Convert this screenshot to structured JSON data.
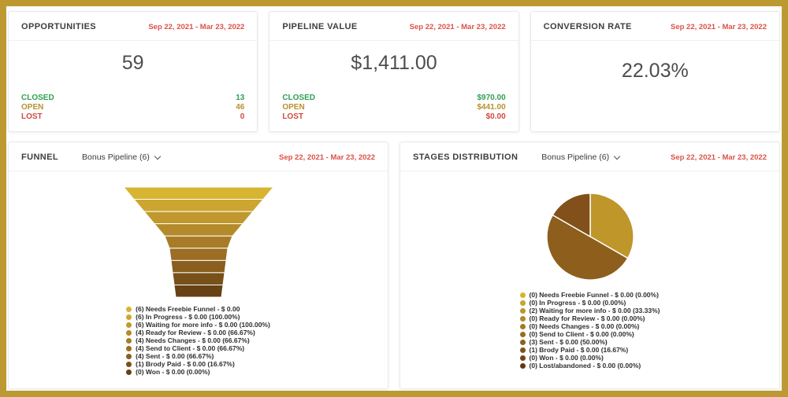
{
  "colors": {
    "frame-gold": "#BD9A31",
    "date-red": "#DC5248",
    "closed-green": "#2FA052",
    "open-gold": "#B8912C",
    "lost-red": "#D04A41",
    "title-gray": "#3E3E3E",
    "number-gray": "#4D4D4D"
  },
  "cards": {
    "opportunities": {
      "title": "OPPORTUNITIES",
      "date_range": "Sep 22, 2021 - Mar 23, 2022",
      "total": "59",
      "rows": [
        {
          "label": "CLOSED",
          "value": "13",
          "color": "#2FA052"
        },
        {
          "label": "OPEN",
          "value": "46",
          "color": "#B8912C"
        },
        {
          "label": "LOST",
          "value": "0",
          "color": "#D04A41"
        }
      ]
    },
    "pipeline_value": {
      "title": "PIPELINE VALUE",
      "date_range": "Sep 22, 2021 - Mar 23, 2022",
      "total": "$1,411.00",
      "rows": [
        {
          "label": "CLOSED",
          "value": "$970.00",
          "color": "#2FA052"
        },
        {
          "label": "OPEN",
          "value": "$441.00",
          "color": "#B8912C"
        },
        {
          "label": "LOST",
          "value": "$0.00",
          "color": "#D04A41"
        }
      ]
    },
    "conversion_rate": {
      "title": "CONVERSION RATE",
      "date_range": "Sep 22, 2021 - Mar 23, 2022",
      "total": "22.03%"
    },
    "funnel": {
      "title": "FUNNEL",
      "pipeline": "Bonus Pipeline (6)",
      "date_range": "Sep 22, 2021 - Mar 23, 2022"
    },
    "stages": {
      "title": "STAGES DISTRIBUTION",
      "pipeline": "Bonus Pipeline (6)",
      "date_range": "Sep 22, 2021 - Mar 23, 2022"
    }
  },
  "chart_data": [
    {
      "type": "funnel",
      "title": "Funnel",
      "legend_position": "bottom",
      "stages": [
        {
          "label": "(6) Needs Freebie Funnel - $ 0.00",
          "count": 6,
          "money": "$ 0.00",
          "pct": null,
          "color": "#D8B433"
        },
        {
          "label": "(6) In Progress - $ 0.00 (100.00%)",
          "count": 6,
          "money": "$ 0.00",
          "pct": 100.0,
          "color": "#CCA630"
        },
        {
          "label": "(6) Waiting for more info - $ 0.00 (100.00%)",
          "count": 6,
          "money": "$ 0.00",
          "pct": 100.0,
          "color": "#C0982D"
        },
        {
          "label": "(4) Ready for Review - $ 0.00 (66.67%)",
          "count": 4,
          "money": "$ 0.00",
          "pct": 66.67,
          "color": "#B48A2A"
        },
        {
          "label": "(4) Needs Changes - $ 0.00 (66.67%)",
          "count": 4,
          "money": "$ 0.00",
          "pct": 66.67,
          "color": "#A87C27"
        },
        {
          "label": "(4) Send to Client - $ 0.00 (66.67%)",
          "count": 4,
          "money": "$ 0.00",
          "pct": 66.67,
          "color": "#9C6E24"
        },
        {
          "label": "(4) Sent - $ 0.00 (66.67%)",
          "count": 4,
          "money": "$ 0.00",
          "pct": 66.67,
          "color": "#8A5E1E"
        },
        {
          "label": "(1) Brody Paid - $ 0.00 (16.67%)",
          "count": 1,
          "money": "$ 0.00",
          "pct": 16.67,
          "color": "#785019"
        },
        {
          "label": "(0) Won - $ 0.00 (0.00%)",
          "count": 0,
          "money": "$ 0.00",
          "pct": 0.0,
          "color": "#664214"
        }
      ]
    },
    {
      "type": "pie",
      "title": "Stages Distribution",
      "legend_position": "bottom",
      "slices": [
        {
          "label": "(0) Needs Freebie Funnel - $ 0.00 (0.00%)",
          "count": 0,
          "money": "$ 0.00",
          "pct": 0.0,
          "color": "#D6B22F"
        },
        {
          "label": "(0) In Progress - $ 0.00 (0.00%)",
          "count": 0,
          "money": "$ 0.00",
          "pct": 0.0,
          "color": "#CAA42C"
        },
        {
          "label": "(2) Waiting for more info - $ 0.00 (33.33%)",
          "count": 2,
          "money": "$ 0.00",
          "pct": 33.33,
          "color": "#BE9629"
        },
        {
          "label": "(0) Ready for Review - $ 0.00 (0.00%)",
          "count": 0,
          "money": "$ 0.00",
          "pct": 0.0,
          "color": "#B28826"
        },
        {
          "label": "(0) Needs Changes - $ 0.00 (0.00%)",
          "count": 0,
          "money": "$ 0.00",
          "pct": 0.0,
          "color": "#A67A23"
        },
        {
          "label": "(0) Send to Client - $ 0.00 (0.00%)",
          "count": 0,
          "money": "$ 0.00",
          "pct": 0.0,
          "color": "#9A6C20"
        },
        {
          "label": "(3) Sent - $ 0.00 (50.00%)",
          "count": 3,
          "money": "$ 0.00",
          "pct": 50.0,
          "color": "#8E5E1D"
        },
        {
          "label": "(1) Brody Paid - $ 0.00 (16.67%)",
          "count": 1,
          "money": "$ 0.00",
          "pct": 16.67,
          "color": "#82501A"
        },
        {
          "label": "(0) Won - $ 0.00 (0.00%)",
          "count": 0,
          "money": "$ 0.00",
          "pct": 0.0,
          "color": "#764217"
        },
        {
          "label": "(0) Lost/abandoned - $ 0.00 (0.00%)",
          "count": 0,
          "money": "$ 0.00",
          "pct": 0.0,
          "color": "#6A3414"
        }
      ]
    }
  ]
}
